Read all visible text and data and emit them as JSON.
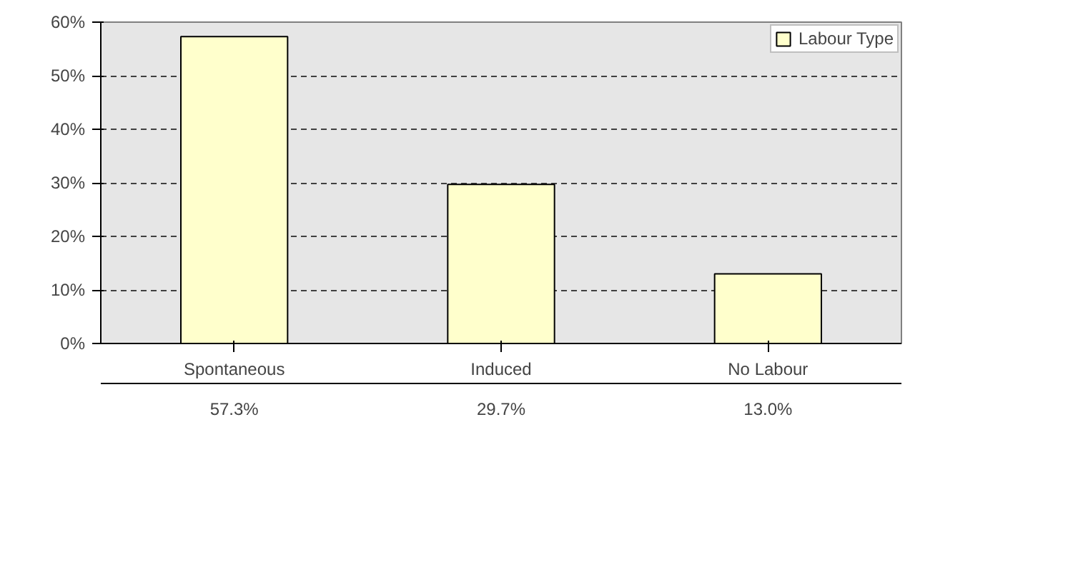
{
  "chart_data": {
    "type": "bar",
    "categories": [
      "Spontaneous",
      "Induced",
      "No Labour"
    ],
    "series": [
      {
        "name": "Labour Type",
        "color": "#ffffcc",
        "values": [
          57.3,
          29.7,
          13.0
        ],
        "value_labels": [
          "57.3%",
          "29.7%",
          "13.0%"
        ]
      }
    ],
    "ylim": [
      0,
      60
    ],
    "yticks": [
      {
        "value": 0,
        "label": "0%"
      },
      {
        "value": 10,
        "label": "10%"
      },
      {
        "value": 20,
        "label": "20%"
      },
      {
        "value": 30,
        "label": "30%"
      },
      {
        "value": 40,
        "label": "40%"
      },
      {
        "value": 50,
        "label": "50%"
      },
      {
        "value": 60,
        "label": "60%"
      }
    ],
    "grid": "y",
    "legend": "top right"
  }
}
